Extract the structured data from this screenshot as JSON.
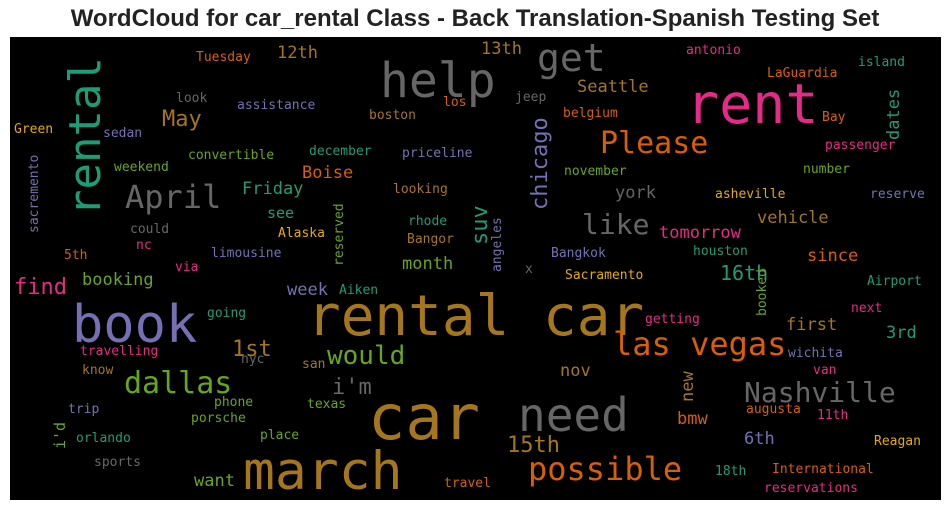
{
  "chart_data": {
    "type": "wordcloud",
    "title": "WordCloud for car_rental Class - Back Translation-Spanish Testing Set",
    "background": "#000000",
    "colormap": "Dark2",
    "words": [
      {
        "text": "car",
        "size": 62,
        "color": "#a6761d"
      },
      {
        "text": "rental car",
        "size": 56,
        "color": "#a6761d"
      },
      {
        "text": "rent",
        "size": 55,
        "color": "#e7298a"
      },
      {
        "text": "march",
        "size": 53,
        "color": "#a6761d"
      },
      {
        "text": "book",
        "size": 52,
        "color": "#7570b3"
      },
      {
        "text": "help",
        "size": 48,
        "color": "#666666"
      },
      {
        "text": "need",
        "size": 46,
        "color": "#666666"
      },
      {
        "text": "rental",
        "size": 44,
        "color": "#1b9e77"
      },
      {
        "text": "get",
        "size": 38,
        "color": "#666666"
      },
      {
        "text": "las vegas",
        "size": 32,
        "color": "#d95f02"
      },
      {
        "text": "possible",
        "size": 32,
        "color": "#d95f02"
      },
      {
        "text": "April",
        "size": 32,
        "color": "#666666"
      },
      {
        "text": "Please",
        "size": 30,
        "color": "#d95f02"
      },
      {
        "text": "dallas",
        "size": 30,
        "color": "#66a61e"
      },
      {
        "text": "Nashville",
        "size": 28,
        "color": "#666666"
      },
      {
        "text": "like",
        "size": 28,
        "color": "#666666"
      },
      {
        "text": "would",
        "size": 26,
        "color": "#66a61e"
      },
      {
        "text": "chicago",
        "size": 22,
        "color": "#7570b3"
      },
      {
        "text": "suv",
        "size": 22,
        "color": "#1b9e77"
      },
      {
        "text": "May",
        "size": 22,
        "color": "#a6761d"
      },
      {
        "text": "15th",
        "size": 22,
        "color": "#a6761d"
      },
      {
        "text": "find",
        "size": 22,
        "color": "#e7298a"
      },
      {
        "text": "i'm",
        "size": 22,
        "color": "#666666"
      },
      {
        "text": "1st",
        "size": 22,
        "color": "#a6761d"
      },
      {
        "text": "16th",
        "size": 20,
        "color": "#1b9e77"
      },
      {
        "text": "Seattle",
        "size": 17,
        "color": "#a6761d"
      },
      {
        "text": "york",
        "size": 17,
        "color": "#666666"
      },
      {
        "text": "vehicle",
        "size": 17,
        "color": "#a6761d"
      },
      {
        "text": "since",
        "size": 17,
        "color": "#d95f02"
      },
      {
        "text": "first",
        "size": 17,
        "color": "#a6761d"
      },
      {
        "text": "3rd",
        "size": 17,
        "color": "#1b9e77"
      },
      {
        "text": "13th",
        "size": 17,
        "color": "#a6761d"
      },
      {
        "text": "12th",
        "size": 17,
        "color": "#a6761d"
      },
      {
        "text": "Friday",
        "size": 17,
        "color": "#1b9e77"
      },
      {
        "text": "Boise",
        "size": 17,
        "color": "#d95f02"
      },
      {
        "text": "month",
        "size": 17,
        "color": "#66a61e"
      },
      {
        "text": "booking",
        "size": 17,
        "color": "#66a61e"
      },
      {
        "text": "tomorrow",
        "size": 17,
        "color": "#e7298a"
      },
      {
        "text": "nov",
        "size": 17,
        "color": "#a6761d"
      },
      {
        "text": "want",
        "size": 17,
        "color": "#66a61e"
      },
      {
        "text": "bmw",
        "size": 17,
        "color": "#d95f02"
      },
      {
        "text": "6th",
        "size": 17,
        "color": "#7570b3"
      },
      {
        "text": "dates",
        "size": 17,
        "color": "#1b9e77"
      },
      {
        "text": "new",
        "size": 17,
        "color": "#a6761d"
      },
      {
        "text": "week",
        "size": 17,
        "color": "#7570b3"
      },
      {
        "text": "see",
        "size": 15,
        "color": "#1b9e77"
      },
      {
        "text": "i'd",
        "size": 15,
        "color": "#66a61e"
      },
      {
        "text": "Reagan",
        "size": 13,
        "color": "#e6ab02"
      },
      {
        "text": "Tuesday",
        "size": 13,
        "color": "#d95f02"
      },
      {
        "text": "assistance",
        "size": 13,
        "color": "#7570b3"
      },
      {
        "text": "look",
        "size": 13,
        "color": "#666666"
      },
      {
        "text": "los",
        "size": 13,
        "color": "#d95f02"
      },
      {
        "text": "jeep",
        "size": 13,
        "color": "#666666"
      },
      {
        "text": "antonio",
        "size": 13,
        "color": "#e7298a"
      },
      {
        "text": "island",
        "size": 13,
        "color": "#1b9e77"
      },
      {
        "text": "LaGuardia",
        "size": 13,
        "color": "#d95f02"
      },
      {
        "text": "Bay",
        "size": 13,
        "color": "#d95f02"
      },
      {
        "text": "belgium",
        "size": 13,
        "color": "#d95f02"
      },
      {
        "text": "boston",
        "size": 13,
        "color": "#a6761d"
      },
      {
        "text": "sedan",
        "size": 13,
        "color": "#7570b3"
      },
      {
        "text": "Green",
        "size": 13,
        "color": "#e6ab02"
      },
      {
        "text": "passenger",
        "size": 13,
        "color": "#e7298a"
      },
      {
        "text": "sacremento",
        "size": 13,
        "color": "#7570b3"
      },
      {
        "text": "weekend",
        "size": 13,
        "color": "#66a61e"
      },
      {
        "text": "convertible",
        "size": 13,
        "color": "#66a61e"
      },
      {
        "text": "december",
        "size": 13,
        "color": "#1b9e77"
      },
      {
        "text": "priceline",
        "size": 13,
        "color": "#7570b3"
      },
      {
        "text": "november",
        "size": 13,
        "color": "#66a61e"
      },
      {
        "text": "number",
        "size": 13,
        "color": "#66a61e"
      },
      {
        "text": "asheville",
        "size": 13,
        "color": "#e6ab02"
      },
      {
        "text": "reserve",
        "size": 13,
        "color": "#7570b3"
      },
      {
        "text": "looking",
        "size": 13,
        "color": "#a6761d"
      },
      {
        "text": "reserved",
        "size": 13,
        "color": "#66a61e"
      },
      {
        "text": "could",
        "size": 13,
        "color": "#666666"
      },
      {
        "text": "rhode",
        "size": 13,
        "color": "#1b9e77"
      },
      {
        "text": "angeles",
        "size": 13,
        "color": "#7570b3"
      },
      {
        "text": "Alaska",
        "size": 13,
        "color": "#e6ab02"
      },
      {
        "text": "Bangor",
        "size": 13,
        "color": "#a6761d"
      },
      {
        "text": "nc",
        "size": 13,
        "color": "#e7298a"
      },
      {
        "text": "limousine",
        "size": 13,
        "color": "#7570b3"
      },
      {
        "text": "houston",
        "size": 13,
        "color": "#1b9e77"
      },
      {
        "text": "Bangkok",
        "size": 13,
        "color": "#7570b3"
      },
      {
        "text": "5th",
        "size": 13,
        "color": "#d95f02"
      },
      {
        "text": "via",
        "size": 13,
        "color": "#e7298a"
      },
      {
        "text": "x",
        "size": 13,
        "color": "#666666"
      },
      {
        "text": "Sacramento",
        "size": 13,
        "color": "#e6ab02"
      },
      {
        "text": "booked",
        "size": 13,
        "color": "#66a61e"
      },
      {
        "text": "Airport",
        "size": 13,
        "color": "#1b9e77"
      },
      {
        "text": "Aiken",
        "size": 13,
        "color": "#1b9e77"
      },
      {
        "text": "going",
        "size": 13,
        "color": "#1b9e77"
      },
      {
        "text": "getting",
        "size": 13,
        "color": "#e7298a"
      },
      {
        "text": "next",
        "size": 13,
        "color": "#e7298a"
      },
      {
        "text": "travelling",
        "size": 13,
        "color": "#e7298a"
      },
      {
        "text": "nyc",
        "size": 13,
        "color": "#666666"
      },
      {
        "text": "san",
        "size": 13,
        "color": "#a6761d"
      },
      {
        "text": "wichita",
        "size": 13,
        "color": "#7570b3"
      },
      {
        "text": "van",
        "size": 13,
        "color": "#e7298a"
      },
      {
        "text": "know",
        "size": 13,
        "color": "#a6761d"
      },
      {
        "text": "phone",
        "size": 13,
        "color": "#66a61e"
      },
      {
        "text": "texas",
        "size": 13,
        "color": "#66a61e"
      },
      {
        "text": "trip",
        "size": 13,
        "color": "#7570b3"
      },
      {
        "text": "porsche",
        "size": 13,
        "color": "#66a61e"
      },
      {
        "text": "augusta",
        "size": 13,
        "color": "#d95f02"
      },
      {
        "text": "11th",
        "size": 13,
        "color": "#e7298a"
      },
      {
        "text": "orlando",
        "size": 13,
        "color": "#1b9e77"
      },
      {
        "text": "place",
        "size": 13,
        "color": "#66a61e"
      },
      {
        "text": "sports",
        "size": 13,
        "color": "#666666"
      },
      {
        "text": "18th",
        "size": 13,
        "color": "#1b9e77"
      },
      {
        "text": "International",
        "size": 13,
        "color": "#d95f02"
      },
      {
        "text": "travel",
        "size": 13,
        "color": "#d95f02"
      },
      {
        "text": "reservations",
        "size": 13,
        "color": "#e7298a"
      }
    ]
  }
}
